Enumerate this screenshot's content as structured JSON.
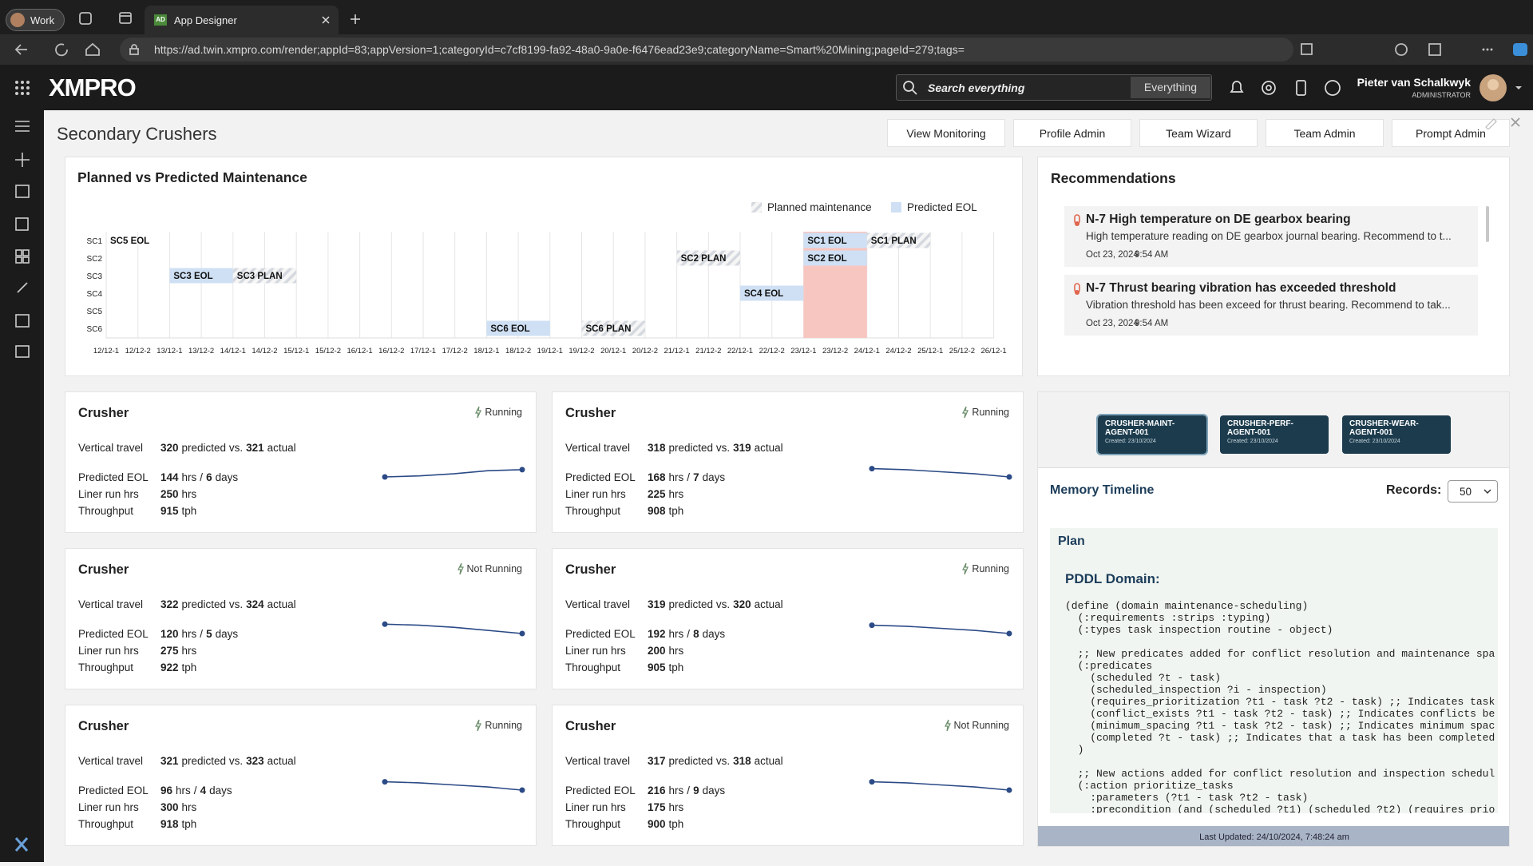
{
  "browser": {
    "profile": "Work",
    "tab_icon": "AD",
    "tab_title": "App Designer",
    "url": "https://ad.twin.xmpro.com/render;appId=83;appVersion=1;categoryId=c7cf8199-fa92-48a0-9a0e-f6476ead23e9;categoryName=Smart%20Mining;pageId=279;tags="
  },
  "header": {
    "logo": "XMPRO",
    "search_placeholder": "Search everything",
    "search_scope": "Everything",
    "user_name": "Pieter van Schalkwyk",
    "user_role": "ADMINISTRATOR"
  },
  "page": {
    "title": "Secondary Crushers",
    "buttons": [
      "View Monitoring",
      "Profile Admin",
      "Team Wizard",
      "Team Admin",
      "Prompt Admin"
    ]
  },
  "maintenance_chart": {
    "title": "Planned vs Predicted Maintenance",
    "legend": [
      {
        "label": "Planned maintenance",
        "style": "planned"
      },
      {
        "label": "Predicted EOL",
        "style": "predicted"
      }
    ],
    "rows": [
      "SC1",
      "SC2",
      "SC3",
      "SC4",
      "SC5",
      "SC6"
    ],
    "columns": [
      "12/12-1",
      "12/12-2",
      "13/12-1",
      "13/12-2",
      "14/12-1",
      "14/12-2",
      "15/12-1",
      "15/12-2",
      "16/12-1",
      "16/12-2",
      "17/12-1",
      "17/12-2",
      "18/12-1",
      "18/12-2",
      "19/12-1",
      "19/12-2",
      "20/12-1",
      "20/12-2",
      "21/12-1",
      "21/12-2",
      "22/12-1",
      "22/12-2",
      "23/12-1",
      "23/12-2",
      "24/12-1",
      "24/12-2",
      "25/12-1",
      "25/12-2",
      "26/12-1"
    ],
    "highlight": {
      "start": "23/12-1",
      "end": "24/12-1"
    },
    "bars": [
      {
        "label": "SC5 EOL",
        "row": "SC1",
        "start": "12/12-1",
        "end": "13/12-1",
        "style": "none"
      },
      {
        "label": "SC3 EOL",
        "row": "SC3",
        "start": "13/12-1",
        "end": "14/12-1",
        "style": "predicted"
      },
      {
        "label": "SC3 PLAN",
        "row": "SC3",
        "start": "14/12-1",
        "end": "15/12-1",
        "style": "planned"
      },
      {
        "label": "SC6 EOL",
        "row": "SC6",
        "start": "18/12-1",
        "end": "19/12-1",
        "style": "predicted"
      },
      {
        "label": "SC6 PLAN",
        "row": "SC6",
        "start": "19/12-2",
        "end": "20/12-2",
        "style": "planned"
      },
      {
        "label": "SC2 PLAN",
        "row": "SC2",
        "start": "21/12-1",
        "end": "22/12-1",
        "style": "planned"
      },
      {
        "label": "SC4 EOL",
        "row": "SC4",
        "start": "22/12-1",
        "end": "23/12-1",
        "style": "predicted"
      },
      {
        "label": "SC1 EOL",
        "row": "SC1",
        "start": "23/12-1",
        "end": "24/12-1",
        "style": "predicted"
      },
      {
        "label": "SC2 EOL",
        "row": "SC2",
        "start": "23/12-1",
        "end": "24/12-1",
        "style": "predicted"
      },
      {
        "label": "SC1 PLAN",
        "row": "SC1",
        "start": "24/12-1",
        "end": "25/12-1",
        "style": "planned"
      }
    ]
  },
  "recommendations": {
    "title": "Recommendations",
    "items": [
      {
        "title": "N-7 High temperature on DE gearbox bearing",
        "text": "High temperature reading on DE gearbox journal bearing. Recommend to t...",
        "date": "Oct 23, 2024",
        "time": "9:54 AM"
      },
      {
        "title": "N-7 Thrust bearing vibration has exceeded threshold",
        "text": "Vibration threshold has been exceed for thrust bearing. Recommend to tak...",
        "date": "Oct 23, 2024",
        "time": "9:54 AM"
      }
    ]
  },
  "card_labels": {
    "vertical_travel": "Vertical travel",
    "predicted": "predicted vs.",
    "actual": "actual",
    "predicted_eol": "Predicted EOL",
    "liner": "Liner run hrs",
    "throughput": "Throughput",
    "hrs": "hrs",
    "separator": "/",
    "days": "days",
    "tph": "tph"
  },
  "cards": [
    {
      "title": "Crusher",
      "status": "Running",
      "predicted": 320,
      "actual": 321,
      "eol_hours": 144,
      "eol_days": 6,
      "liner_hours": 250,
      "throughput": 915,
      "trend": [
        0,
        1,
        3,
        6,
        7
      ]
    },
    {
      "title": "Crusher",
      "status": "Running",
      "predicted": 318,
      "actual": 319,
      "eol_hours": 168,
      "eol_days": 7,
      "liner_hours": 225,
      "throughput": 908,
      "trend": [
        8,
        7,
        5,
        3,
        0
      ]
    },
    {
      "title": "Crusher",
      "status": "Not Running",
      "predicted": 322,
      "actual": 324,
      "eol_hours": 120,
      "eol_days": 5,
      "liner_hours": 275,
      "throughput": 922,
      "trend": [
        9,
        8,
        6,
        3,
        0
      ]
    },
    {
      "title": "Crusher",
      "status": "Running",
      "predicted": 319,
      "actual": 320,
      "eol_hours": 192,
      "eol_days": 8,
      "liner_hours": 200,
      "throughput": 905,
      "trend": [
        8,
        7,
        5,
        3,
        0
      ]
    },
    {
      "title": "Crusher",
      "status": "Running",
      "predicted": 321,
      "actual": 323,
      "eol_hours": 96,
      "eol_days": 4,
      "liner_hours": 300,
      "throughput": 918,
      "trend": [
        8,
        7,
        5,
        3,
        0
      ]
    },
    {
      "title": "Crusher",
      "status": "Not Running",
      "predicted": 317,
      "actual": 318,
      "eol_hours": 216,
      "eol_days": 9,
      "liner_hours": 175,
      "throughput": 900,
      "trend": [
        8,
        7,
        5,
        3,
        0
      ]
    }
  ],
  "agents": [
    {
      "name": "CRUSHER-MAINT-AGENT-001",
      "created": "Created: 23/10/2024"
    },
    {
      "name": "CRUSHER-PERF-AGENT-001",
      "created": "Created: 23/10/2024"
    },
    {
      "name": "CRUSHER-WEAR-AGENT-001",
      "created": "Created: 23/10/2024"
    }
  ],
  "memory": {
    "title": "Memory Timeline",
    "records_label": "Records:",
    "records_value": "50",
    "plan_title": "Plan",
    "domain_heading": "PDDL Domain:",
    "code_blocks": [
      [
        "(define (domain maintenance-scheduling)",
        "  (:requirements :strips :typing)",
        "  (:types task inspection routine - object)"
      ],
      [
        "  ;; New predicates added for conflict resolution and maintenance spa",
        "  (:predicates",
        "    (scheduled ?t - task)",
        "    (scheduled_inspection ?i - inspection)",
        "    (requires_prioritization ?t1 - task ?t2 - task) ;; Indicates task",
        "    (conflict_exists ?t1 - task ?t2 - task) ;; Indicates conflicts be",
        "    (minimum_spacing ?t1 - task ?t2 - task) ;; Indicates minimum spac",
        "    (completed ?t - task) ;; Indicates that a task has been completed",
        "  )"
      ],
      [
        "  ;; New actions added for conflict resolution and inspection schedul",
        "  (:action prioritize_tasks",
        "    :parameters (?t1 - task ?t2 - task)",
        "    :precondition (and (scheduled ?t1) (scheduled ?t2) (requires prio"
      ]
    ],
    "last_updated": "Last Updated: 24/10/2024, 7:48:24 am"
  }
}
